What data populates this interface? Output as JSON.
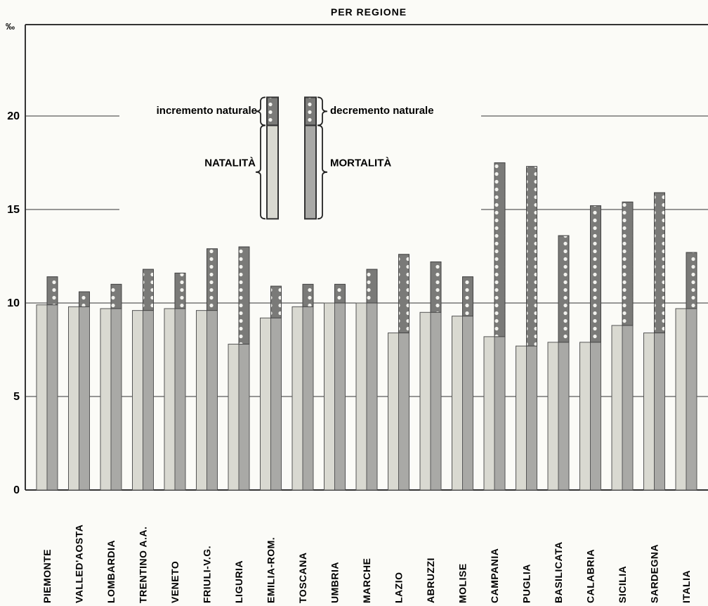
{
  "chart_data": {
    "type": "bar",
    "title": "PER REGIONE",
    "ylabel": "‰",
    "ylim": [
      0,
      25
    ],
    "yticks": [
      0,
      5,
      10,
      15,
      20
    ],
    "grid": true,
    "categories": [
      "PIEMONTE",
      "VALLED'AOSTA",
      "LOMBARDIA",
      "TRENTINO A.A.",
      "VENETO",
      "FRIULI-V.G.",
      "LIGURIA",
      "EMILIA-ROM.",
      "TOSCANA",
      "UMBRIA",
      "MARCHE",
      "LAZIO",
      "ABRUZZI",
      "MOLISE",
      "CAMPANIA",
      "PUGLIA",
      "BASILICATA",
      "CALABRIA",
      "SICILIA",
      "SARDEGNA",
      "ITALIA"
    ],
    "series": [
      {
        "name": "NATALITÀ",
        "values": [
          9.9,
          9.8,
          9.7,
          9.6,
          9.7,
          9.6,
          7.8,
          9.2,
          9.8,
          10.0,
          10.0,
          8.4,
          9.5,
          9.3,
          8.2,
          7.7,
          7.9,
          7.9,
          8.8,
          8.4,
          9.7
        ]
      },
      {
        "name": "MORTALITÀ",
        "values": [
          11.4,
          10.6,
          11.0,
          11.8,
          11.6,
          12.9,
          13.0,
          10.9,
          11.0,
          11.0,
          11.8,
          12.6,
          12.2,
          11.4,
          17.5,
          17.3,
          13.6,
          15.2,
          15.4,
          15.9,
          12.7
        ]
      }
    ],
    "legend": {
      "increase_label": "incremento naturale",
      "decrease_label": "decremento naturale",
      "birth_label": "NATALITÀ",
      "death_label": "MORTALITÀ"
    },
    "colors": {
      "birth_fill": "#d9d9d1",
      "death_fill": "#a9a9a6",
      "change_band": "#7a7a78",
      "dots": "#f2f2ee",
      "grid": "#333333"
    }
  }
}
